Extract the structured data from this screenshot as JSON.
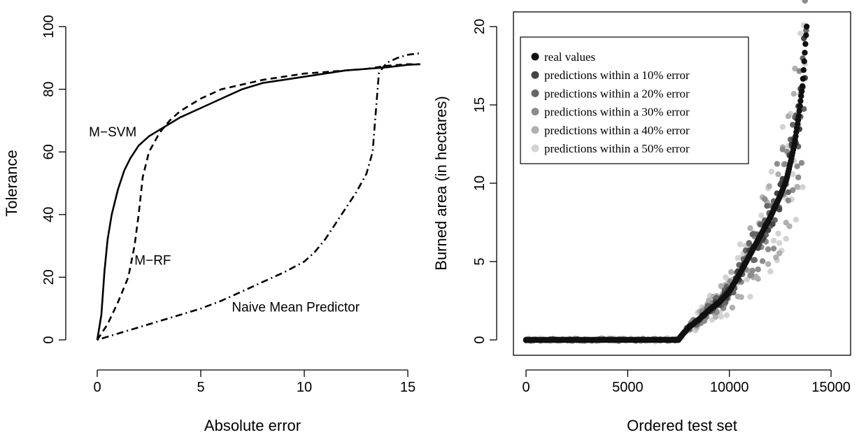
{
  "chart_data": [
    {
      "type": "line",
      "xlabel": "Absolute error",
      "ylabel": "Tolerance",
      "xlim": [
        0,
        15.6
      ],
      "ylim": [
        0,
        100
      ],
      "xticks": [
        "0",
        "5",
        "10",
        "15"
      ],
      "yticks": [
        "0",
        "20",
        "40",
        "60",
        "80",
        "100"
      ],
      "series": [
        {
          "name": "M−SVM",
          "style": "solid",
          "x": [
            0,
            0.2,
            0.35,
            0.5,
            0.7,
            1.0,
            1.3,
            1.6,
            2.0,
            2.5,
            3.0,
            3.5,
            4.0,
            5.0,
            6.0,
            7.0,
            8.0,
            9.0,
            10.0,
            11.0,
            12.0,
            13.0,
            14.0,
            15.0,
            15.6
          ],
          "y": [
            0,
            8,
            22,
            32,
            40,
            48,
            54,
            58,
            62,
            65,
            67,
            69,
            71,
            74,
            77,
            80,
            82,
            83,
            84,
            85,
            86,
            86.5,
            87,
            87.8,
            88
          ]
        },
        {
          "name": "M−RF",
          "style": "dashed",
          "x": [
            0,
            0.5,
            1.0,
            1.5,
            1.8,
            2.0,
            2.2,
            2.5,
            3.0,
            3.5,
            4.0,
            5.0,
            6.0,
            7.0,
            8.0,
            9.0,
            10.0,
            11.0,
            12.0,
            13.0,
            14.0,
            15.0,
            15.6
          ],
          "y": [
            0,
            5,
            12,
            20,
            30,
            40,
            52,
            60,
            66,
            70,
            73,
            77,
            80,
            81.5,
            83,
            84,
            85,
            85.5,
            86,
            86.5,
            87.5,
            88,
            88
          ]
        },
        {
          "name": "Naive Mean Predictor",
          "style": "dotdash",
          "x": [
            0,
            1.0,
            2.0,
            3.0,
            4.0,
            5.0,
            6.0,
            7.0,
            8.0,
            9.0,
            10.0,
            10.5,
            11.0,
            11.5,
            12.0,
            12.5,
            13.0,
            13.3,
            13.6,
            13.8,
            14.0,
            14.5,
            15.0,
            15.6
          ],
          "y": [
            0,
            2,
            4,
            6,
            8,
            10,
            12.5,
            15.5,
            18.5,
            21.5,
            25,
            28,
            32,
            37,
            42,
            47,
            53,
            60,
            85,
            87,
            88.5,
            90,
            91,
            91.5
          ]
        }
      ],
      "annotations": [
        {
          "text": "M−SVM",
          "x": -0.4,
          "y": 65
        },
        {
          "text": "M−RF",
          "x": 1.8,
          "y": 24
        },
        {
          "text": "Naive Mean Predictor",
          "x": 6.5,
          "y": 9
        }
      ]
    },
    {
      "type": "scatter",
      "xlabel": "Ordered test set",
      "ylabel": "Burned area (in hectares)",
      "xlim": [
        -400,
        15600
      ],
      "ylim": [
        0,
        20
      ],
      "xticks": [
        "0",
        "5000",
        "10000",
        "15000"
      ],
      "yticks": [
        "0",
        "5",
        "10",
        "15",
        "20"
      ],
      "legend": "top-left",
      "series": [
        {
          "name": "real values",
          "color": "#111111"
        },
        {
          "name": "predictions within a 10% error",
          "color": "#444444"
        },
        {
          "name": "predictions within a 20% error",
          "color": "#666666"
        },
        {
          "name": "predictions within a 30% error",
          "color": "#8c8c8c"
        },
        {
          "name": "predictions within a 40% error",
          "color": "#b0b0b0"
        },
        {
          "name": "predictions within a 50% error",
          "color": "#d3d3d3"
        }
      ],
      "real_values_curve": {
        "x": [
          0,
          7500,
          7600,
          8000,
          8500,
          9000,
          9500,
          10000,
          10500,
          11000,
          11500,
          12000,
          12500,
          12800,
          13000,
          13200,
          13400,
          13600,
          13800
        ],
        "y": [
          0,
          0,
          0.2,
          0.8,
          1.3,
          1.9,
          2.4,
          3.1,
          4.2,
          5.4,
          6.6,
          7.8,
          9.2,
          10.2,
          11.3,
          12.5,
          14.2,
          16.3,
          20.0
        ]
      }
    }
  ]
}
